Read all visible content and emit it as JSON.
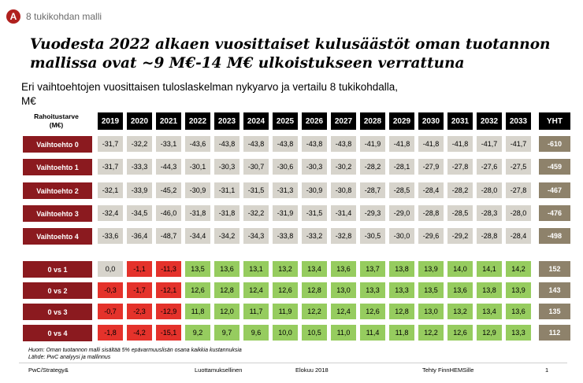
{
  "header": {
    "badge": "A",
    "section": "8 tukikohdan malli"
  },
  "title": "Vuodesta 2022 alkaen vuosittaiset kulusäästöt oman tuotannon mallissa ovat ~9 M€-14 M€ ulkoistukseen verrattuna",
  "subtitle": "Eri vaihtoehtojen vuosittaisen tuloslaskelman nykyarvo ja vertailu 8 tukikohdalla,",
  "unit": "M€",
  "table": {
    "corner_label_1": "Rahoitustarve",
    "corner_label_2": "(M€)",
    "columns": [
      "2019",
      "2020",
      "2021",
      "2022",
      "2023",
      "2024",
      "2025",
      "2026",
      "2027",
      "2028",
      "2029",
      "2030",
      "2031",
      "2032",
      "2033",
      "YHT"
    ],
    "alternatives": [
      {
        "label": "Vaihtoehto 0",
        "values": [
          "-31,7",
          "-32,2",
          "-33,1",
          "-43,6",
          "-43,8",
          "-43,8",
          "-43,8",
          "-43,8",
          "-43,8",
          "-41,9",
          "-41,8",
          "-41,8",
          "-41,8",
          "-41,7",
          "-41,7",
          "-610"
        ]
      },
      {
        "label": "Vaihtoehto 1",
        "values": [
          "-31,7",
          "-33,3",
          "-44,3",
          "-30,1",
          "-30,3",
          "-30,7",
          "-30,6",
          "-30,3",
          "-30,2",
          "-28,2",
          "-28,1",
          "-27,9",
          "-27,8",
          "-27,6",
          "-27,5",
          "-459"
        ]
      },
      {
        "label": "Vaihtoehto 2",
        "values": [
          "-32,1",
          "-33,9",
          "-45,2",
          "-30,9",
          "-31,1",
          "-31,5",
          "-31,3",
          "-30,9",
          "-30,8",
          "-28,7",
          "-28,5",
          "-28,4",
          "-28,2",
          "-28,0",
          "-27,8",
          "-467"
        ]
      },
      {
        "label": "Vaihtoehto 3",
        "values": [
          "-32,4",
          "-34,5",
          "-46,0",
          "-31,8",
          "-31,8",
          "-32,2",
          "-31,9",
          "-31,5",
          "-31,4",
          "-29,3",
          "-29,0",
          "-28,8",
          "-28,5",
          "-28,3",
          "-28,0",
          "-476"
        ]
      },
      {
        "label": "Vaihtoehto 4",
        "values": [
          "-33,6",
          "-36,4",
          "-48,7",
          "-34,4",
          "-34,2",
          "-34,3",
          "-33,8",
          "-33,2",
          "-32,8",
          "-30,5",
          "-30,0",
          "-29,6",
          "-29,2",
          "-28,8",
          "-28,4",
          "-498"
        ]
      }
    ],
    "comparisons": [
      {
        "label": "0 vs 1",
        "values": [
          "0,0",
          "-1,1",
          "-11,3",
          "13,5",
          "13,6",
          "13,1",
          "13,2",
          "13,4",
          "13,6",
          "13,7",
          "13,8",
          "13,9",
          "14,0",
          "14,1",
          "14,2",
          "152"
        ]
      },
      {
        "label": "0 vs 2",
        "values": [
          "-0,3",
          "-1,7",
          "-12,1",
          "12,6",
          "12,8",
          "12,4",
          "12,6",
          "12,8",
          "13,0",
          "13,3",
          "13,3",
          "13,5",
          "13,6",
          "13,8",
          "13,9",
          "143"
        ]
      },
      {
        "label": "0 vs 3",
        "values": [
          "-0,7",
          "-2,3",
          "-12,9",
          "11,8",
          "12,0",
          "11,7",
          "11,9",
          "12,2",
          "12,4",
          "12,6",
          "12,8",
          "13,0",
          "13,2",
          "13,4",
          "13,6",
          "135"
        ]
      },
      {
        "label": "0 vs 4",
        "values": [
          "-1,8",
          "-4,2",
          "-15,1",
          "9,2",
          "9,7",
          "9,6",
          "10,0",
          "10,5",
          "11,0",
          "11,4",
          "11,8",
          "12,2",
          "12,6",
          "12,9",
          "13,3",
          "112"
        ]
      }
    ]
  },
  "notes": [
    "Huom: Oman tuotannon malli sisältää 5% epävarmuuslisän osana kaikkia kustannuksia",
    "Lähde: PwC analyysi ja mallinnus"
  ],
  "footer": {
    "left": "PwC/Strategy&",
    "classification": "Luottamuksellinen",
    "date": "Elokuu 2018",
    "prepared": "Tehty FinnHEMSille",
    "page": "1"
  },
  "colors": {
    "header_bg": "#000000",
    "row_label_bg": "#8b1a1f",
    "value_bg": "#d7d4cc",
    "total_bg": "#8e826b",
    "positive_bg": "#96cc5f",
    "negative_bg": "#e4322b",
    "badge_bg": "#b0201e"
  }
}
